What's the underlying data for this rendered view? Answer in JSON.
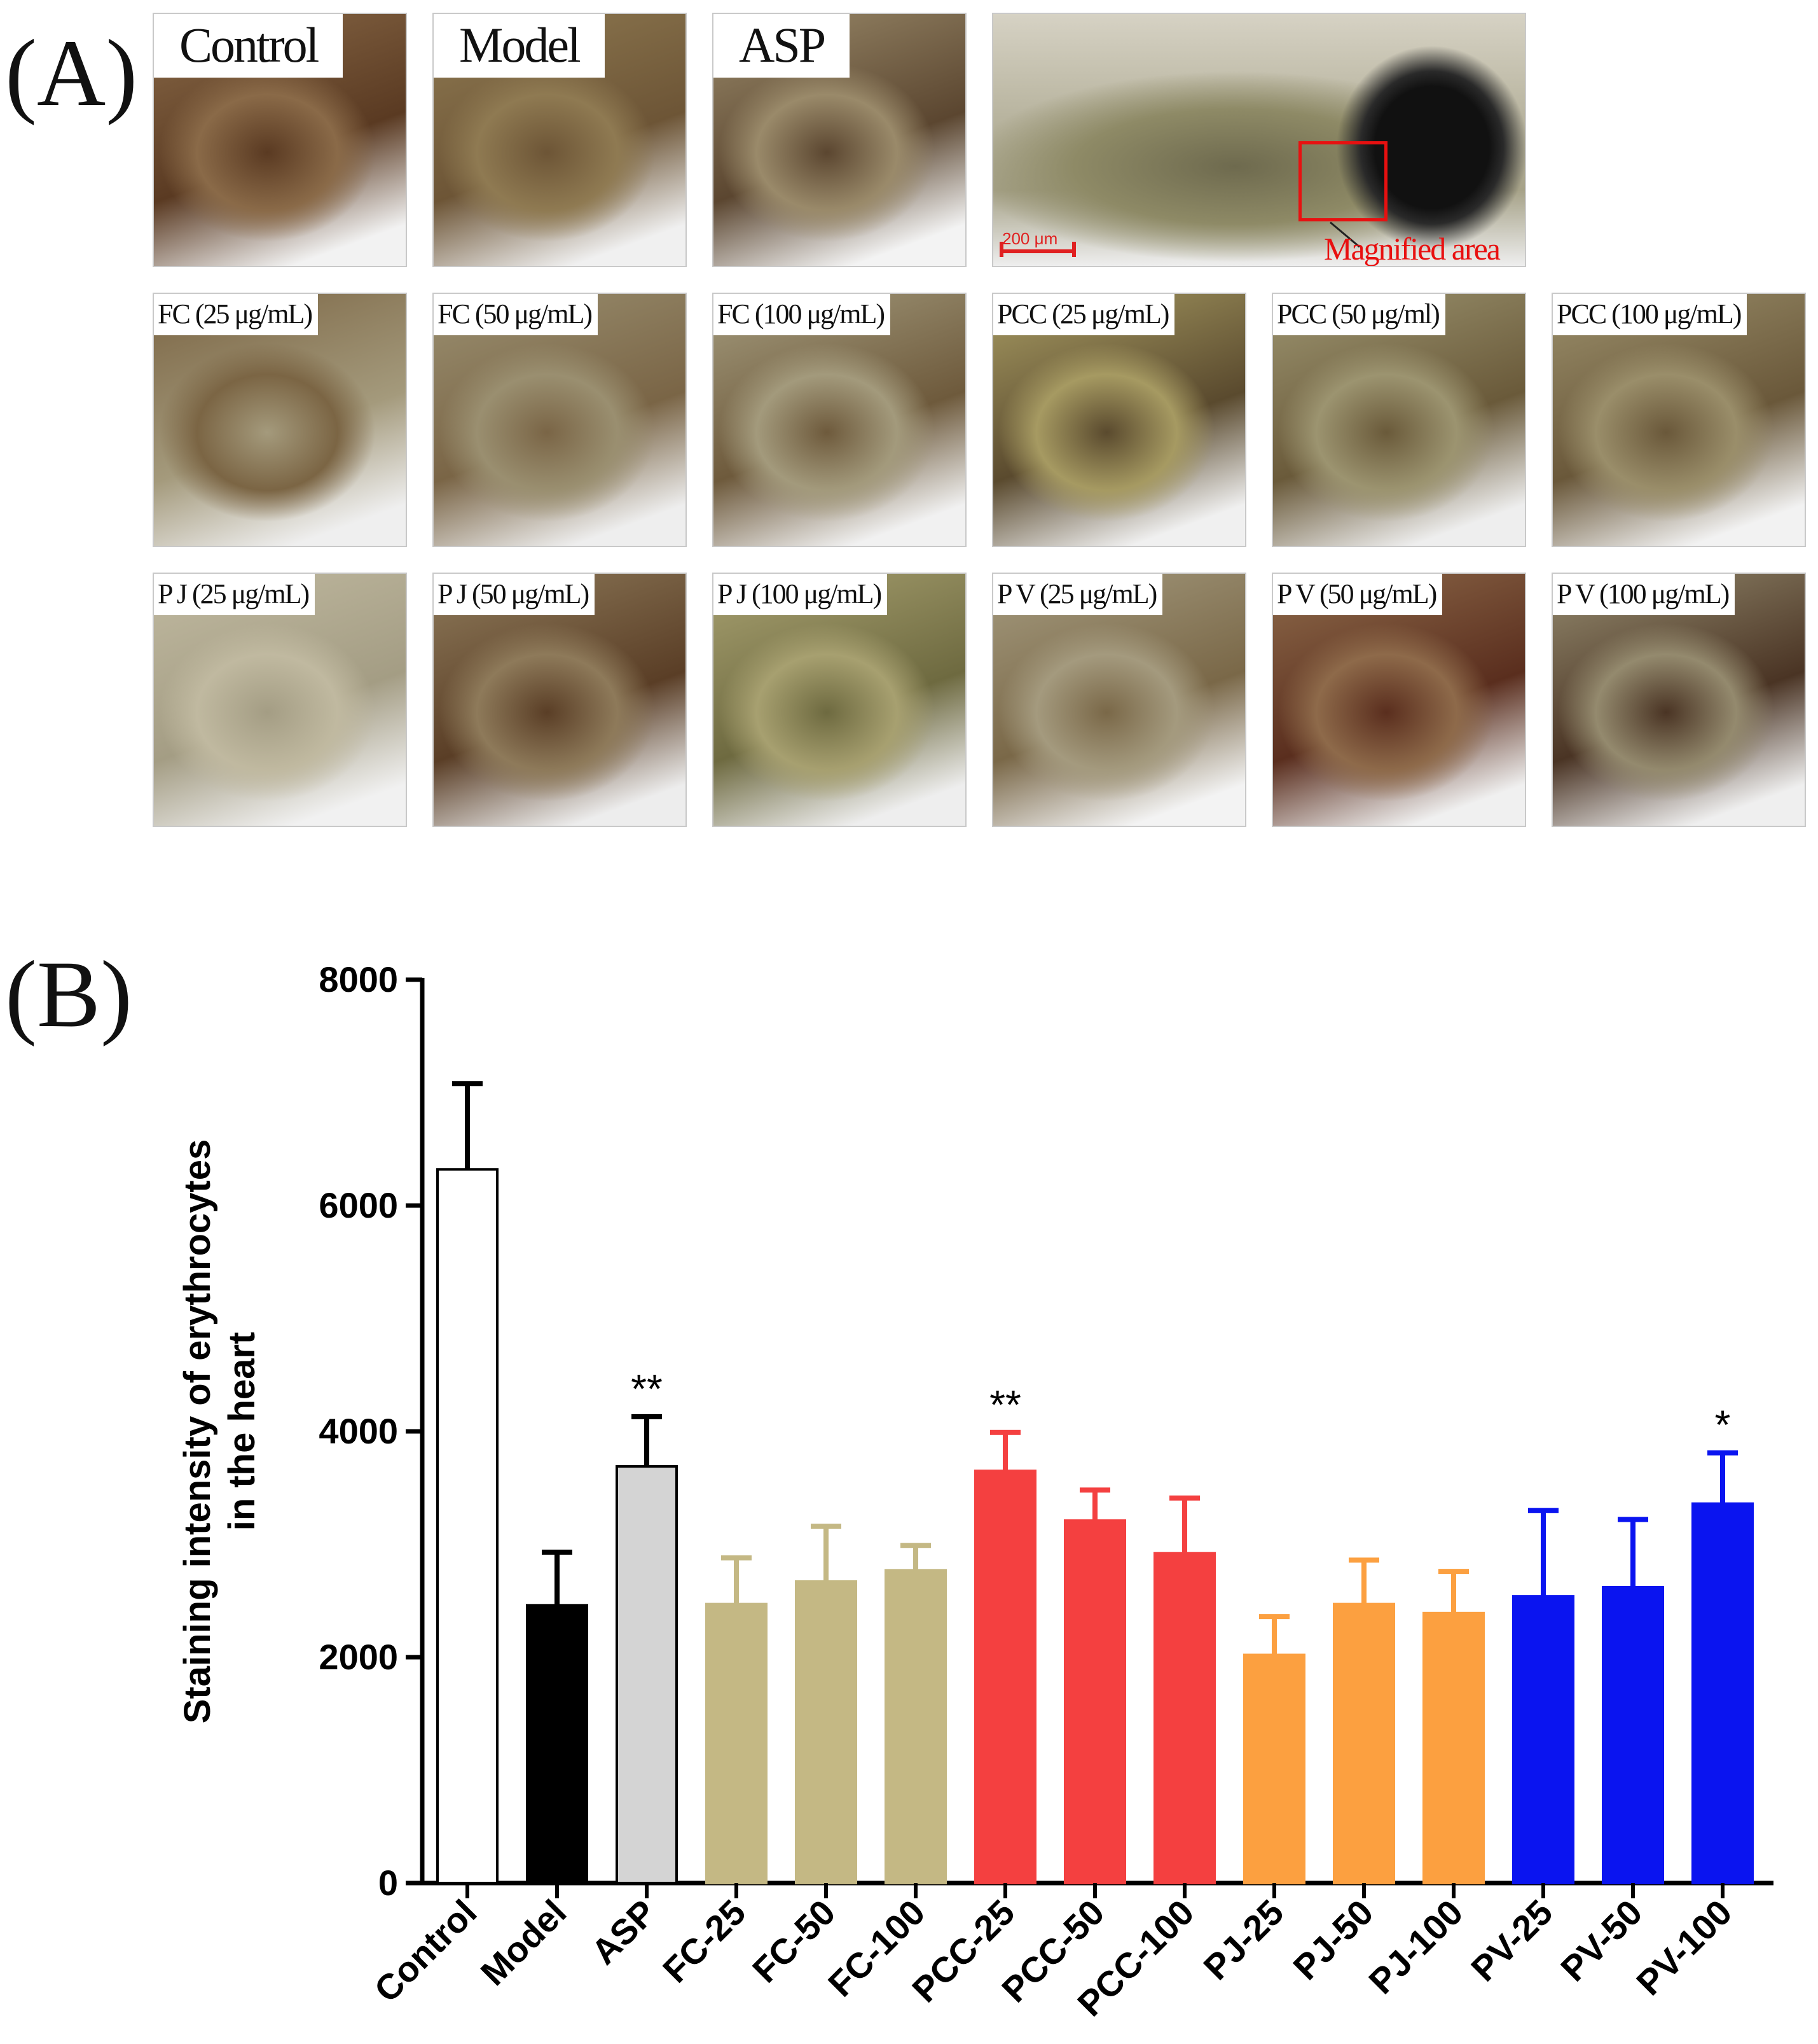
{
  "panel_a": {
    "letter": "(A)",
    "top_row": [
      {
        "label": "Control",
        "bg": [
          "#5a3a22",
          "#8a6a48",
          "#f2f2f2"
        ]
      },
      {
        "label": "Model",
        "bg": [
          "#6d5536",
          "#8f7a52",
          "#f0f0f0"
        ]
      },
      {
        "label": "ASP",
        "bg": [
          "#5b4630",
          "#9a8a6a",
          "#f3f3f3"
        ]
      }
    ],
    "overview": {
      "scale_label": "200 μm",
      "magnified_label": "Magnified area"
    },
    "rows": [
      [
        {
          "label": "FC (25 μg/mL)",
          "bg": [
            "#a49a7c",
            "#7b6544",
            "#efefef"
          ]
        },
        {
          "label": "FC (50 μg/mL)",
          "bg": [
            "#7a6546",
            "#9a8f70",
            "#eeeeee"
          ]
        },
        {
          "label": "FC (100 μg/mL)",
          "bg": [
            "#6e5a3c",
            "#a39a7c",
            "#f1f1f1"
          ]
        },
        {
          "label": "PCC (25 μg/mL)",
          "bg": [
            "#5a4a2e",
            "#a69a62",
            "#f0f0f0"
          ]
        },
        {
          "label": "PCC (50 μg/ml)",
          "bg": [
            "#6a5a3a",
            "#9c9470",
            "#eeeeee"
          ]
        },
        {
          "label": "PCC (100 μg/mL)",
          "bg": [
            "#6a583a",
            "#9a8e6a",
            "#f2f2f2"
          ]
        }
      ],
      [
        {
          "label": "P J (25 μg/mL)",
          "bg": [
            "#a49d84",
            "#c0b9a0",
            "#f1f1f1"
          ]
        },
        {
          "label": "P J (50 μg/mL)",
          "bg": [
            "#5a3e26",
            "#8e7a5a",
            "#ededed"
          ]
        },
        {
          "label": "P J (100 μg/mL)",
          "bg": [
            "#6e6a40",
            "#a7a070",
            "#eeeeee"
          ]
        },
        {
          "label": "P V (25 μg/mL)",
          "bg": [
            "#7a6848",
            "#a49a7e",
            "#f3f3f3"
          ]
        },
        {
          "label": "P V (50 μg/mL)",
          "bg": [
            "#5a2e1e",
            "#8e6a4a",
            "#f0f0f0"
          ]
        },
        {
          "label": "P V (100 μg/mL)",
          "bg": [
            "#4a3424",
            "#948a6e",
            "#efefef"
          ]
        }
      ]
    ]
  },
  "panel_b": {
    "letter": "(B)"
  },
  "chart_data": {
    "type": "bar",
    "title": "",
    "xlabel": "",
    "ylabel_lines": [
      "Staining intensity of erythrocytes",
      "in the heart"
    ],
    "ylim": [
      0,
      8000
    ],
    "yticks": [
      0,
      2000,
      4000,
      6000,
      8000
    ],
    "ytick_labels": [
      "0",
      "2000",
      "4000",
      "6000",
      "8000"
    ],
    "categories": [
      "Control",
      "Model",
      "ASP",
      "FC-25",
      "FC-50",
      "FC-100",
      "PCC-25",
      "PCC-50",
      "PCC-100",
      "PJ-25",
      "PJ-50",
      "PJ-100",
      "PV-25",
      "PV-50",
      "PV-100"
    ],
    "values": [
      6320,
      2460,
      3690,
      2470,
      2670,
      2770,
      3650,
      3210,
      2920,
      2020,
      2470,
      2390,
      2540,
      2620,
      3360
    ],
    "errors": [
      760,
      470,
      440,
      410,
      490,
      220,
      340,
      270,
      490,
      340,
      390,
      370,
      760,
      600,
      450
    ],
    "significance": [
      "",
      "",
      "**",
      "",
      "",
      "",
      "**",
      "",
      "",
      "",
      "",
      "",
      "",
      "",
      "*"
    ],
    "colors": [
      "#ffffff",
      "#000000",
      "#d4d4d4",
      "#c4b884",
      "#c4b884",
      "#c4b884",
      "#f44040",
      "#f44040",
      "#f44040",
      "#fca040",
      "#fca040",
      "#fca040",
      "#0a14f0",
      "#0a14f0",
      "#0a14f0"
    ]
  }
}
